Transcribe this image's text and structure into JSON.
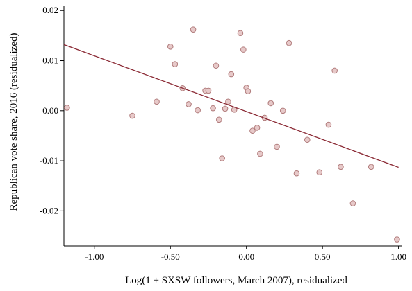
{
  "chart_data": {
    "type": "scatter",
    "xlabel": "Log(1 + SXSW followers, March 2007), residualized",
    "ylabel": "Republican vote share, 2016 (residualized)",
    "xlim": [
      -1.2,
      1.02
    ],
    "ylim": [
      -0.027,
      0.021
    ],
    "xticks": [
      -1.0,
      -0.5,
      0.0,
      0.5,
      1.0
    ],
    "xtick_labels": [
      "-1.00",
      "-0.50",
      "0.00",
      "0.50",
      "1.00"
    ],
    "yticks": [
      -0.02,
      -0.01,
      0.0,
      0.01,
      0.02
    ],
    "ytick_labels": [
      "-0.02",
      "-0.01",
      "0.00",
      "0.01",
      "0.02"
    ],
    "grid": false,
    "point_color": "#e7c9c9",
    "point_edge_color": "#b07b7b",
    "line_color": "#8b2a35",
    "points": [
      {
        "x": -1.18,
        "y": 0.0006
      },
      {
        "x": -0.75,
        "y": -0.001
      },
      {
        "x": -0.59,
        "y": 0.0018
      },
      {
        "x": -0.5,
        "y": 0.0128
      },
      {
        "x": -0.47,
        "y": 0.0093
      },
      {
        "x": -0.42,
        "y": 0.0045
      },
      {
        "x": -0.38,
        "y": 0.0013
      },
      {
        "x": -0.35,
        "y": 0.0162
      },
      {
        "x": -0.32,
        "y": 0.0001
      },
      {
        "x": -0.27,
        "y": 0.004
      },
      {
        "x": -0.25,
        "y": 0.004
      },
      {
        "x": -0.22,
        "y": 0.0005
      },
      {
        "x": -0.2,
        "y": 0.009
      },
      {
        "x": -0.18,
        "y": -0.0018
      },
      {
        "x": -0.16,
        "y": -0.0095
      },
      {
        "x": -0.14,
        "y": 0.0004
      },
      {
        "x": -0.12,
        "y": 0.0018
      },
      {
        "x": -0.1,
        "y": 0.0073
      },
      {
        "x": -0.08,
        "y": 0.0002
      },
      {
        "x": -0.04,
        "y": 0.0155
      },
      {
        "x": -0.02,
        "y": 0.0122
      },
      {
        "x": 0.0,
        "y": 0.0046
      },
      {
        "x": 0.01,
        "y": 0.0039
      },
      {
        "x": 0.04,
        "y": -0.004
      },
      {
        "x": 0.07,
        "y": -0.0034
      },
      {
        "x": 0.09,
        "y": -0.0086
      },
      {
        "x": 0.12,
        "y": -0.0014
      },
      {
        "x": 0.16,
        "y": 0.0015
      },
      {
        "x": 0.2,
        "y": -0.0072
      },
      {
        "x": 0.24,
        "y": 0.0
      },
      {
        "x": 0.28,
        "y": 0.0135
      },
      {
        "x": 0.33,
        "y": -0.0125
      },
      {
        "x": 0.4,
        "y": -0.0058
      },
      {
        "x": 0.48,
        "y": -0.0123
      },
      {
        "x": 0.54,
        "y": -0.0028
      },
      {
        "x": 0.58,
        "y": 0.008
      },
      {
        "x": 0.62,
        "y": -0.0112
      },
      {
        "x": 0.7,
        "y": -0.0185
      },
      {
        "x": 0.82,
        "y": -0.0112
      },
      {
        "x": 0.99,
        "y": -0.0257
      }
    ],
    "fit_line": {
      "x": [
        -1.2,
        1.0
      ],
      "y": [
        0.0132,
        -0.0113
      ]
    }
  }
}
